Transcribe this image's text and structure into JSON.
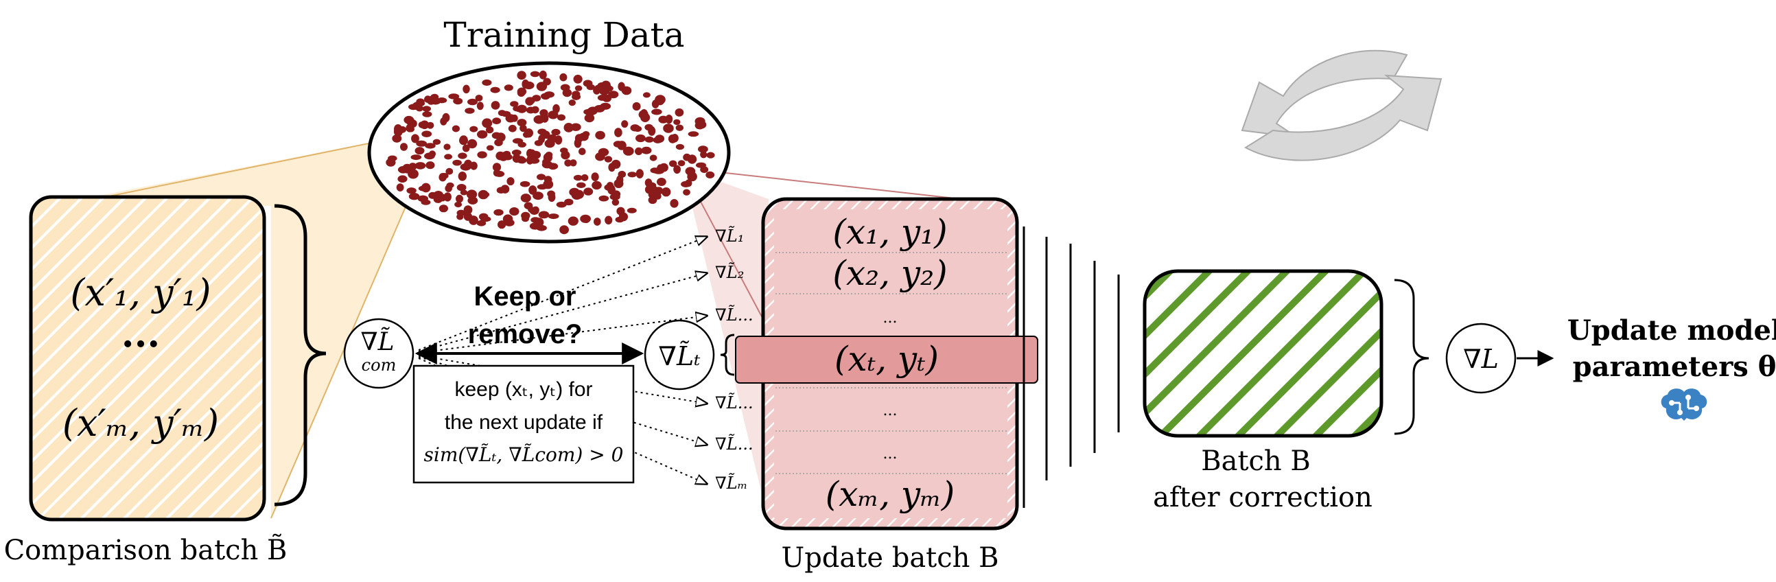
{
  "diagram": {
    "training_data": {
      "title": "Training Data"
    },
    "comparison_batch": {
      "rows": [
        "(x′₁, y′₁)",
        "...",
        "(x′ₘ, y′ₘ)"
      ],
      "caption": "Comparison batch B̃"
    },
    "grad_com": {
      "text": "∇L̃",
      "sub": "com"
    },
    "keep_question": {
      "line1": "Keep or",
      "line2": "remove?"
    },
    "rule_box": {
      "line1": "keep (xₜ, yₜ)  for",
      "line2": "the next update if",
      "line3": "sim(∇L̃ₜ, ∇L̃com) > 0"
    },
    "grad_t": {
      "text": "∇L̃ₜ"
    },
    "gradient_labels": [
      "∇L̃₁",
      "∇L̃₂",
      "∇L̃...",
      "∇L̃...",
      "∇L̃...",
      "∇L̃ₘ"
    ],
    "update_batch": {
      "rows": [
        "(x₁, y₁)",
        "(x₂, y₂)",
        "...",
        "(xₜ, yₜ)",
        "...",
        "...",
        "(xₘ, yₘ)"
      ],
      "caption": "Update batch B"
    },
    "corrected_batch": {
      "caption_line1": "Batch B",
      "caption_line2": "after correction"
    },
    "grad_l": {
      "text": "∇L"
    },
    "update_params": {
      "line1": "Update model",
      "line2": "parameters θ"
    },
    "colors": {
      "comparison_fill": "#fde7c2",
      "comparison_hatch": "#ffffff",
      "update_fill": "#f2c9c9",
      "highlight_row": "#e39a9a",
      "dots": "#8b1a1a",
      "green": "#5e9a2b",
      "cycle_arrows": "#d8d8d8",
      "brain_icon": "#3b82c4"
    },
    "icons": [
      "cycle-arrows-icon",
      "brain-circuit-icon",
      "arrow-right-icon"
    ]
  }
}
